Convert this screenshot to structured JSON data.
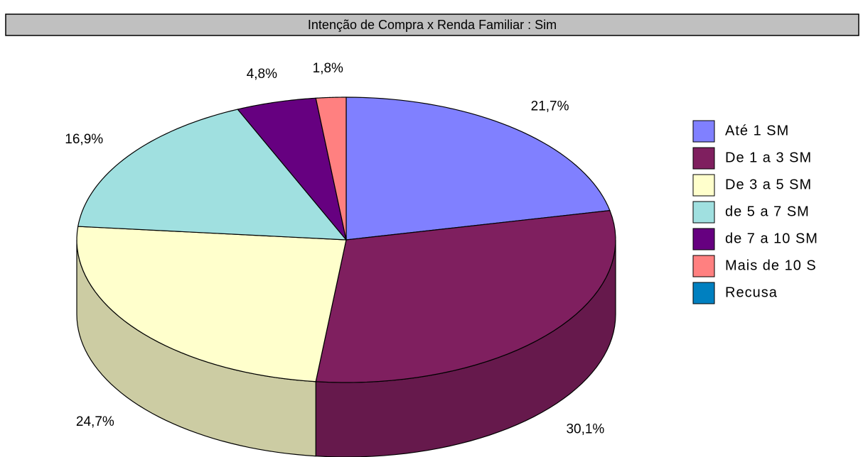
{
  "chart_data": {
    "type": "pie3d",
    "title": "Intenção de Compra x Renda Familiar : Sim",
    "categories": [
      "Até 1 SM",
      "De 1 a 3 SM",
      "De 3 a 5 SM",
      "de 5 a 7 SM",
      "de 7 a 10 SM",
      "Mais de 10 S",
      "Recusa"
    ],
    "values": [
      21.7,
      30.1,
      24.7,
      16.9,
      4.8,
      1.8,
      0
    ],
    "value_labels": [
      "21,7%",
      "30,1%",
      "24,7%",
      "16,9%",
      "4,8%",
      "1,8%",
      null
    ],
    "colors": [
      "#8080ff",
      "#7f1f5f",
      "#ffffcc",
      "#a0e0e0",
      "#660080",
      "#ff8080",
      "#0080c0"
    ],
    "legend": "right"
  }
}
